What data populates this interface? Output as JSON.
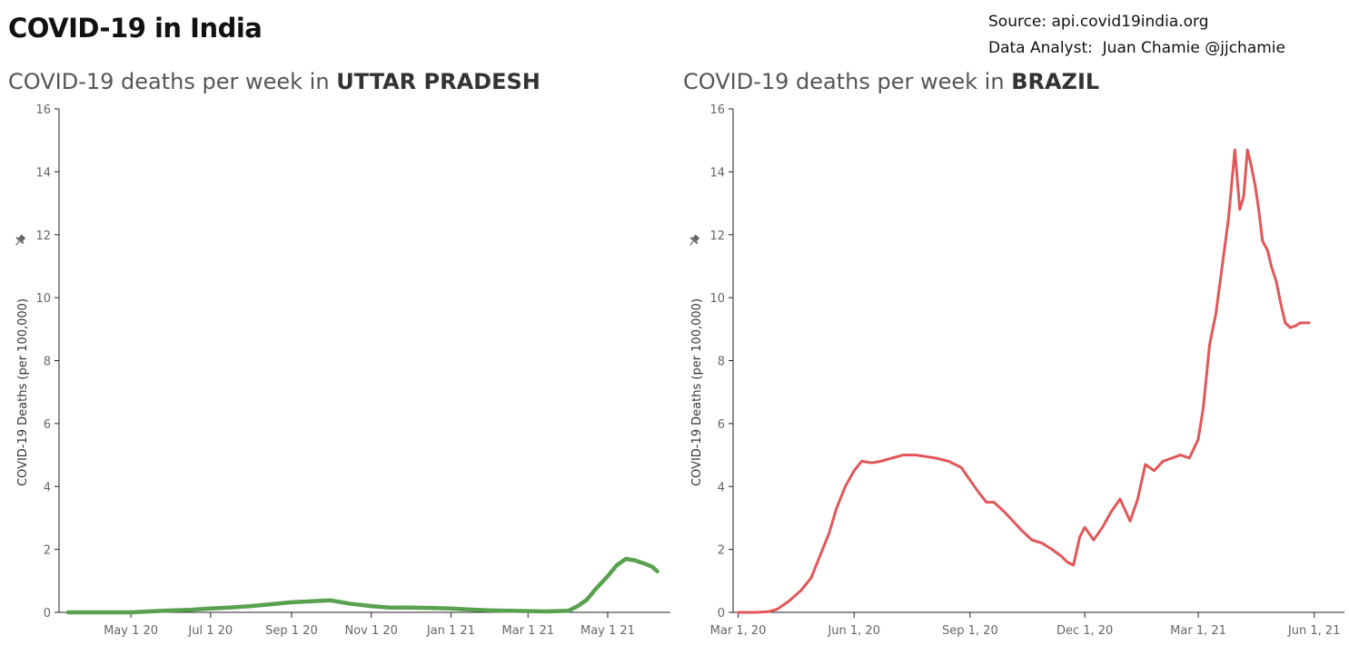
{
  "page": {
    "title": "COVID-19 in India",
    "source_line": "Source: api.covid19india.org",
    "analyst_line": "Data Analyst:  Juan Chamie @jjchamie"
  },
  "chart_data": [
    {
      "type": "line",
      "title_prefix": "COVID-19 deaths per week in ",
      "title_region": "UTTAR PRADESH",
      "ylabel": "COVID-19 Deaths (per 100,000)",
      "ylim": [
        0,
        16
      ],
      "yticks": [
        0,
        2,
        4,
        6,
        8,
        10,
        12,
        14,
        16
      ],
      "xlim": [
        "2020-03-07",
        "2021-06-18"
      ],
      "xticks": [
        {
          "date": "2020-05-01",
          "label": "May 1 20"
        },
        {
          "date": "2020-07-01",
          "label": "Jul 1 20"
        },
        {
          "date": "2020-09-01",
          "label": "Sep 1 20"
        },
        {
          "date": "2020-11-01",
          "label": "Nov 1 20"
        },
        {
          "date": "2021-01-01",
          "label": "Jan 1 21"
        },
        {
          "date": "2021-03-01",
          "label": "Mar 1 21"
        },
        {
          "date": "2021-05-01",
          "label": "May 1 21"
        }
      ],
      "grid": false,
      "color": "#59a14f",
      "series": [
        {
          "x": [
            "2020-03-14",
            "2020-04-01",
            "2020-04-15",
            "2020-05-01",
            "2020-05-15",
            "2020-06-01",
            "2020-06-15",
            "2020-07-01",
            "2020-07-15",
            "2020-08-01",
            "2020-08-15",
            "2020-09-01",
            "2020-09-15",
            "2020-10-01",
            "2020-10-15",
            "2020-11-01",
            "2020-11-15",
            "2020-12-01",
            "2020-12-15",
            "2021-01-01",
            "2021-01-15",
            "2021-02-01",
            "2021-02-15",
            "2021-03-01",
            "2021-03-15",
            "2021-04-01",
            "2021-04-08",
            "2021-04-15",
            "2021-04-22",
            "2021-05-01",
            "2021-05-08",
            "2021-05-15",
            "2021-05-22",
            "2021-05-29",
            "2021-06-04",
            "2021-06-08"
          ],
          "values": [
            0.0,
            0.0,
            0.0,
            0.0,
            0.03,
            0.06,
            0.08,
            0.12,
            0.15,
            0.2,
            0.25,
            0.32,
            0.35,
            0.38,
            0.28,
            0.2,
            0.15,
            0.15,
            0.14,
            0.12,
            0.09,
            0.06,
            0.05,
            0.04,
            0.03,
            0.05,
            0.2,
            0.4,
            0.75,
            1.15,
            1.5,
            1.7,
            1.65,
            1.55,
            1.45,
            1.3
          ]
        }
      ]
    },
    {
      "type": "line",
      "title_prefix": "COVID-19 deaths per week in ",
      "title_region": "BRAZIL",
      "ylabel": "COVID-19 Deaths (per 100,000)",
      "ylim": [
        0,
        16
      ],
      "yticks": [
        0,
        2,
        4,
        6,
        8,
        10,
        12,
        14,
        16
      ],
      "xlim": [
        "2020-02-26",
        "2021-06-25"
      ],
      "xticks": [
        {
          "date": "2020-03-01",
          "label": "Mar 1, 20"
        },
        {
          "date": "2020-06-01",
          "label": "Jun 1, 20"
        },
        {
          "date": "2020-09-01",
          "label": "Sep 1, 20"
        },
        {
          "date": "2020-12-01",
          "label": "Dec 1, 20"
        },
        {
          "date": "2021-03-01",
          "label": "Mar 1, 21"
        },
        {
          "date": "2021-06-01",
          "label": "Jun 1, 21"
        }
      ],
      "grid": false,
      "color": "#e15759",
      "series": [
        {
          "x": [
            "2020-03-01",
            "2020-03-15",
            "2020-03-25",
            "2020-04-01",
            "2020-04-10",
            "2020-04-20",
            "2020-04-28",
            "2020-05-05",
            "2020-05-12",
            "2020-05-18",
            "2020-05-25",
            "2020-06-01",
            "2020-06-07",
            "2020-06-15",
            "2020-06-22",
            "2020-07-01",
            "2020-07-10",
            "2020-07-20",
            "2020-07-28",
            "2020-08-05",
            "2020-08-15",
            "2020-08-25",
            "2020-09-01",
            "2020-09-08",
            "2020-09-14",
            "2020-09-20",
            "2020-09-28",
            "2020-10-05",
            "2020-10-12",
            "2020-10-20",
            "2020-10-28",
            "2020-11-05",
            "2020-11-12",
            "2020-11-17",
            "2020-11-22",
            "2020-11-27",
            "2020-12-01",
            "2020-12-08",
            "2020-12-15",
            "2020-12-22",
            "2020-12-29",
            "2021-01-06",
            "2021-01-12",
            "2021-01-18",
            "2021-01-25",
            "2021-02-01",
            "2021-02-08",
            "2021-02-15",
            "2021-02-22",
            "2021-03-01",
            "2021-03-05",
            "2021-03-10",
            "2021-03-15",
            "2021-03-20",
            "2021-03-25",
            "2021-03-30",
            "2021-04-03",
            "2021-04-06",
            "2021-04-09",
            "2021-04-12",
            "2021-04-15",
            "2021-04-18",
            "2021-04-21",
            "2021-04-25",
            "2021-04-28",
            "2021-05-02",
            "2021-05-05",
            "2021-05-09",
            "2021-05-13",
            "2021-05-17",
            "2021-05-21",
            "2021-05-25",
            "2021-05-28"
          ],
          "values": [
            0.0,
            0.0,
            0.02,
            0.1,
            0.35,
            0.7,
            1.1,
            1.8,
            2.5,
            3.3,
            4.0,
            4.5,
            4.8,
            4.75,
            4.8,
            4.9,
            5.0,
            5.0,
            4.95,
            4.9,
            4.8,
            4.6,
            4.2,
            3.8,
            3.5,
            3.5,
            3.2,
            2.9,
            2.6,
            2.3,
            2.2,
            2.0,
            1.8,
            1.6,
            1.5,
            2.4,
            2.7,
            2.3,
            2.7,
            3.2,
            3.6,
            2.9,
            3.6,
            4.7,
            4.5,
            4.8,
            4.9,
            5.0,
            4.9,
            5.5,
            6.5,
            8.5,
            9.5,
            11.0,
            12.5,
            14.7,
            12.8,
            13.2,
            14.7,
            14.2,
            13.6,
            12.8,
            11.8,
            11.5,
            11.0,
            10.5,
            9.9,
            9.2,
            9.05,
            9.1,
            9.2,
            9.2,
            9.2
          ]
        }
      ]
    }
  ]
}
